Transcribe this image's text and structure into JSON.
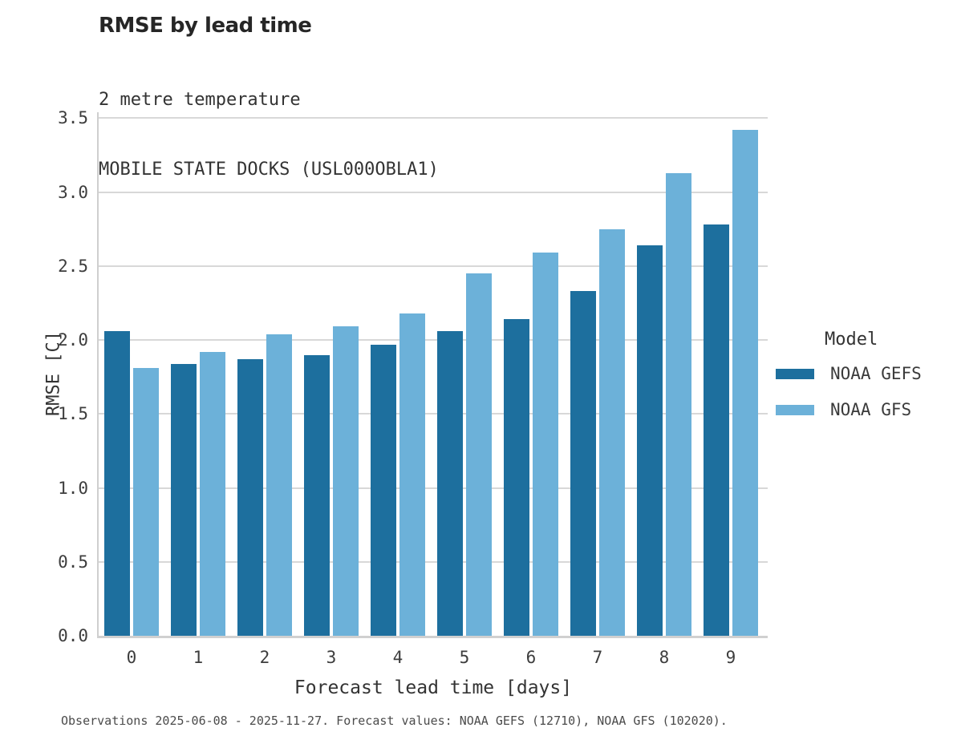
{
  "chart_data": {
    "type": "bar",
    "title": "RMSE by lead time",
    "subtitle": "2 metre temperature",
    "station_line": "MOBILE STATE DOCKS (USL000OBLA1)",
    "categories": [
      "0",
      "1",
      "2",
      "3",
      "4",
      "5",
      "6",
      "7",
      "8",
      "9"
    ],
    "series": [
      {
        "name": "NOAA GEFS",
        "color": "#1d6f9e",
        "values": [
          2.06,
          1.84,
          1.87,
          1.9,
          1.97,
          2.06,
          2.14,
          2.33,
          2.64,
          2.78
        ]
      },
      {
        "name": "NOAA GFS",
        "color": "#6cb1d9",
        "values": [
          1.81,
          1.92,
          2.04,
          2.09,
          2.18,
          2.45,
          2.59,
          2.75,
          3.13,
          3.42
        ]
      }
    ],
    "xlabel": "Forecast lead time [days]",
    "ylabel": "RMSE [C]",
    "ylim": [
      0,
      3.54
    ],
    "ytick_step": 0.5,
    "yticks": [
      "0.0",
      "0.5",
      "1.0",
      "1.5",
      "2.0",
      "2.5",
      "3.0",
      "3.5"
    ],
    "grid": "horizontal-only",
    "legend_title": "Model",
    "legend_position": "right",
    "caption": "Observations 2025-06-08 - 2025-11-27. Forecast values: NOAA GEFS (12710), NOAA GFS (102020)."
  },
  "colors": {
    "gridline": "#d8d8d8",
    "spine": "#cfcfcf",
    "gefs": "#1d6f9e",
    "gfs": "#6cb1d9"
  }
}
